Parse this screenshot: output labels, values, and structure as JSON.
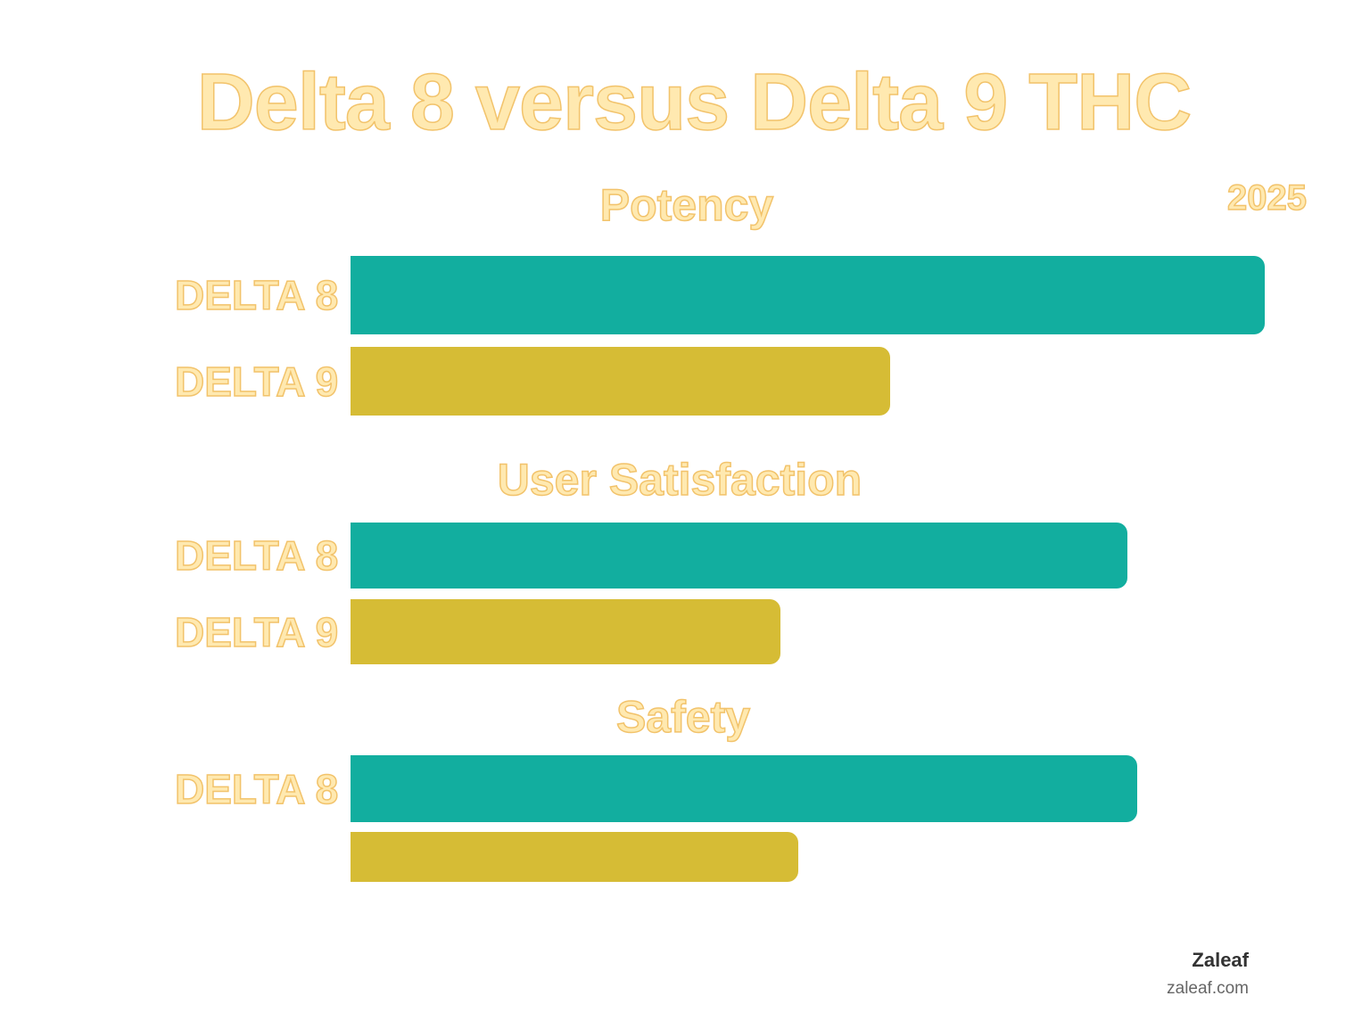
{
  "chart_data": {
    "type": "bar",
    "orientation": "horizontal",
    "title": "Delta 8 versus Delta 9 THC",
    "subtitle": "2025",
    "groups": [
      {
        "title": "Potency",
        "bars": [
          {
            "label": "DELTA 8",
            "value": 100,
            "color": "#12AE9F"
          },
          {
            "label": "DELTA 9",
            "value": 59,
            "color": "#D6BC35"
          }
        ]
      },
      {
        "title": "User Satisfaction",
        "bars": [
          {
            "label": "DELTA 8",
            "value": 85,
            "color": "#12AE9F"
          },
          {
            "label": "DELTA 9",
            "value": 47,
            "color": "#D6BC35"
          }
        ]
      },
      {
        "title": "Safety",
        "bars": [
          {
            "label": "DELTA 8",
            "value": 86,
            "color": "#12AE9F"
          },
          {
            "label": "",
            "value": 49,
            "color": "#D6BC35"
          }
        ]
      }
    ],
    "xlim": [
      0,
      100
    ],
    "grid": false,
    "legend": "none"
  },
  "footer": {
    "brand": "Zaleaf",
    "url": "zaleaf.com"
  }
}
